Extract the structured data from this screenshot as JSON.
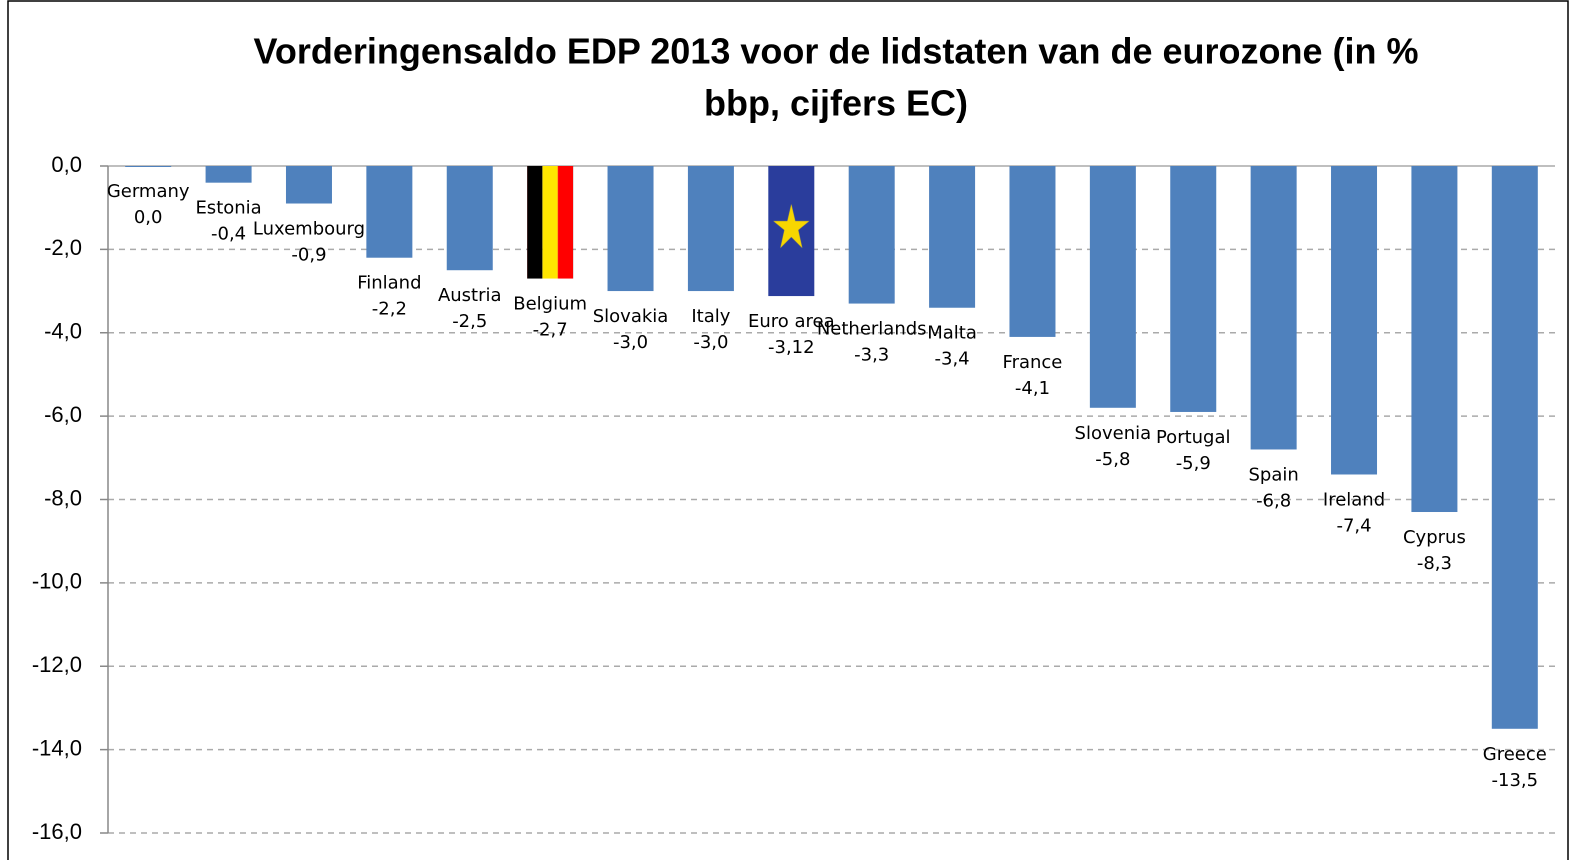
{
  "chart_data": {
    "type": "bar",
    "title": [
      "Vorderingensaldo EDP 2013 voor de lidstaten van de eurozone (in %",
      "bbp, cijfers EC)"
    ],
    "categories": [
      "Germany",
      "Estonia",
      "Luxembourg",
      "Finland",
      "Austria",
      "Belgium",
      "Slovakia",
      "Italy",
      "Euro area",
      "Netherlands",
      "Malta",
      "France",
      "Slovenia",
      "Portugal",
      "Spain",
      "Ireland",
      "Cyprus",
      "Greece"
    ],
    "values": [
      0.0,
      -0.4,
      -0.9,
      -2.2,
      -2.5,
      -2.7,
      -3.0,
      -3.0,
      -3.12,
      -3.3,
      -3.4,
      -4.1,
      -5.8,
      -5.9,
      -6.8,
      -7.4,
      -8.3,
      -13.5
    ],
    "value_labels": [
      "0,0",
      "-0,4",
      "-0,9",
      "-2,2",
      "-2,5",
      "-2,7",
      "-3,0",
      "-3,0",
      "-3,12",
      "-3,3",
      "-3,4",
      "-4,1",
      "-5,8",
      "-5,9",
      "-6,8",
      "-7,4",
      "-8,3",
      "-13,5"
    ],
    "colors": [
      "#4f81bd",
      "#4f81bd",
      "#4f81bd",
      "#4f81bd",
      "#4f81bd",
      "url(#flag-be)",
      "#4f81bd",
      "#4f81bd",
      "url(#flag-eu)",
      "#4f81bd",
      "#4f81bd",
      "#4f81bd",
      "#4f81bd",
      "#4f81bd",
      "#4f81bd",
      "#4f81bd",
      "#4f81bd",
      "#4f81bd"
    ],
    "ylim": [
      -16,
      0
    ],
    "yticks": [
      {
        "value": 0,
        "label": "0,0"
      },
      {
        "value": -2,
        "label": "-2,0"
      },
      {
        "value": -4,
        "label": "-4,0"
      },
      {
        "value": -6,
        "label": "-6,0"
      },
      {
        "value": -8,
        "label": "-8,0"
      },
      {
        "value": -10,
        "label": "-10,0"
      },
      {
        "value": -12,
        "label": "-12,0"
      },
      {
        "value": -14,
        "label": "-14,0"
      },
      {
        "value": -16,
        "label": "-16,0"
      }
    ],
    "grid": true
  }
}
